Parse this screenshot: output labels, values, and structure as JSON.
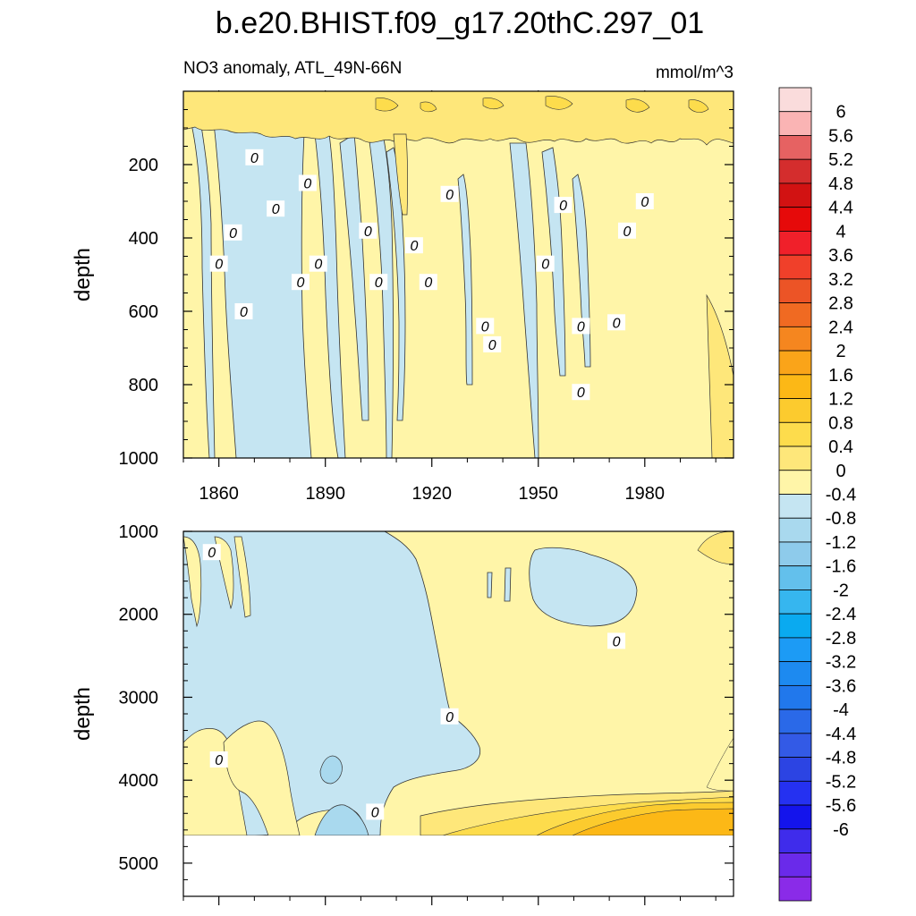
{
  "title": "b.e20.BHIST.f09_g17.20thC.297_01",
  "colors": {
    "positive": [
      "#FFF5A8",
      "#FEE77A",
      "#FDDC4C",
      "#FCCB2E",
      "#FCB816",
      "#FAA419",
      "#F5861F",
      "#F06A22",
      "#EC5426",
      "#F0402A",
      "#F0202A",
      "#E60A0A",
      "#D21212",
      "#D42D2D",
      "#E66262",
      "#FAB4B4"
    ],
    "negative": [
      "#C5E5F2",
      "#A9D9EE",
      "#8ECBEB",
      "#63C0EC",
      "#36B6EF",
      "#0AAAF0",
      "#1C9BF5",
      "#1D8AF0",
      "#2178EC",
      "#2A69E8",
      "#335AE6",
      "#2C44E3",
      "#2531F1",
      "#1414EC",
      "#3F2CEB",
      "#6A2AEA",
      "#8A2BE8"
    ],
    "boundary_positive": "#FADCDC",
    "line": "#333333"
  },
  "colorbar": {
    "labels": [
      "6",
      "5.6",
      "5.2",
      "4.8",
      "4.4",
      "4",
      "3.6",
      "3.2",
      "2.8",
      "2.4",
      "2",
      "1.6",
      "1.2",
      "0.8",
      "0.4",
      "0",
      "-0.4",
      "-0.8",
      "-1.2",
      "-1.6",
      "-2",
      "-2.4",
      "-2.8",
      "-3.2",
      "-3.6",
      "-4",
      "-4.4",
      "-4.8",
      "-5.2",
      "-5.6",
      "-6"
    ]
  },
  "chart_data": [
    {
      "type": "heatmap",
      "panel": "upper",
      "title_left": "NO3 anomaly, ATL_49N-66N",
      "title_right": "mmol/m^3",
      "ylabel": "depth",
      "ylim": [
        0,
        1000
      ],
      "xlim": [
        1850,
        2005
      ],
      "yticks": [
        200,
        400,
        600,
        800,
        1000
      ],
      "xticks": [
        1860,
        1890,
        1920,
        1950,
        1980
      ],
      "contour_labels": [
        {
          "x": 1860,
          "y": 470,
          "label": "0"
        },
        {
          "x": 1864,
          "y": 385,
          "label": "0"
        },
        {
          "x": 1870,
          "y": 180,
          "label": "0"
        },
        {
          "x": 1876,
          "y": 320,
          "label": "0"
        },
        {
          "x": 1867,
          "y": 600,
          "label": "0"
        },
        {
          "x": 1885,
          "y": 250,
          "label": "0"
        },
        {
          "x": 1883,
          "y": 520,
          "label": "0"
        },
        {
          "x": 1888,
          "y": 470,
          "label": "0"
        },
        {
          "x": 1902,
          "y": 380,
          "label": "0"
        },
        {
          "x": 1905,
          "y": 520,
          "label": "0"
        },
        {
          "x": 1915,
          "y": 420,
          "label": "0"
        },
        {
          "x": 1919,
          "y": 520,
          "label": "0"
        },
        {
          "x": 1925,
          "y": 280,
          "label": "0"
        },
        {
          "x": 1935,
          "y": 640,
          "label": "0"
        },
        {
          "x": 1937,
          "y": 690,
          "label": "0"
        },
        {
          "x": 1952,
          "y": 470,
          "label": "0"
        },
        {
          "x": 1957,
          "y": 310,
          "label": "0"
        },
        {
          "x": 1962,
          "y": 640,
          "label": "0"
        },
        {
          "x": 1962,
          "y": 820,
          "label": "0"
        },
        {
          "x": 1972,
          "y": 630,
          "label": "0"
        },
        {
          "x": 1975,
          "y": 380,
          "label": "0"
        },
        {
          "x": 1980,
          "y": 300,
          "label": "0"
        }
      ]
    },
    {
      "type": "heatmap",
      "panel": "lower",
      "ylabel": "depth",
      "ylim": [
        1000,
        5400
      ],
      "xlim": [
        1850,
        2005
      ],
      "yticks": [
        1000,
        2000,
        3000,
        4000,
        5000
      ],
      "data_bottom_depth": 4650,
      "contour_labels": [
        {
          "x": 1858,
          "y": 1250,
          "label": "0"
        },
        {
          "x": 1860,
          "y": 3750,
          "label": "0"
        },
        {
          "x": 1904,
          "y": 4380,
          "label": "0"
        },
        {
          "x": 1925,
          "y": 3230,
          "label": "0"
        },
        {
          "x": 1972,
          "y": 2320,
          "label": "0"
        }
      ]
    }
  ]
}
